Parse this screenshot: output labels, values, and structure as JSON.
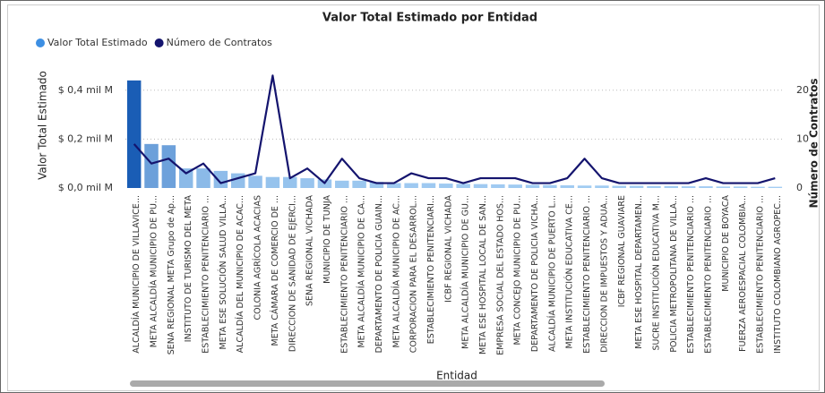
{
  "chart_data": {
    "type": "bar-line",
    "title": "Valor Total Estimado por Entidad",
    "x_label": "Entidad",
    "y_label": "Valor Total Estimado",
    "y2_label": "Número de Contratos",
    "categories": [
      "ALCALDÍA MUNICIPIO DE VILLAVICE...",
      "META ALCALDÍA MUNICIPIO DE PU...",
      "SENA REGIONAL META Grupo de Ap...",
      "INSTITUTO DE TURISMO DEL META",
      "ESTABLECIMIENTO PENITENCIARIO ...",
      "META ESE SOLUCIÓN SALUD VILLA...",
      "ALCALDÍA DEL MUNICIPIO DE ACAC...",
      "COLONIA AGRÍCOLA ACACIAS",
      "META CÁMARA DE COMERCIO DE ...",
      "DIRECCION DE SANIDAD DE EJERCI...",
      "SENA REGIONAL VICHADA",
      "MUNICIPIO DE TUNJA",
      "ESTABLECIMIENTO PENITENCIARIO ...",
      "META ALCALDÍA MUNICIPIO DE CA...",
      "DEPARTAMENTO DE POLICIA GUAIN...",
      "META ALCALDÍA MUNICIPIO DE AC...",
      "CORPORACION PARA EL DESARROL...",
      "ESTABLECIMIENTO PENITENCIARI...",
      "ICBF REGIONAL VICHADA",
      "META ALCALDÍA MUNICIPIO DE GU...",
      "META ESE HOSPITAL LOCAL DE SAN...",
      "EMPRESA SOCIAL DEL ESTADO HOS...",
      "META CONCEJO MUNICIPIO DE PU...",
      "DEPARTAMENTO DE POLICIA VICHA...",
      "ALCALDÍA MUNICIPIO DE PUERTO L...",
      "META INSTITUCIÓN EDUCATIVA CE...",
      "ESTABLECIMIENTO PENITENCIARIO ...",
      "DIRECCION DE IMPUESTOS Y ADUA...",
      "ICBF REGIONAL GUAVIARE",
      "META ESE HOSPITAL DEPARTAMEN...",
      "SUCRE INSTITUCIÓN EDUCATIVA M...",
      "POLICIA METROPOLITANA DE VILLA...",
      "ESTABLECIMIENTO PENITENCIARIO ...",
      "ESTABLECIMIENTO PENITENCIARIO ...",
      "MUNICIPIO DE BOYACA",
      "FUERZA AEROESPACIAL COLOMBIA...",
      "ESTABLECIMIENTO PENITENCIARIO ...",
      "INSTITUTO COLOMBIANO AGROPEC..."
    ],
    "series": [
      {
        "name": "Valor Total Estimado",
        "color": "#3d8fe3",
        "color_scale": [
          "#a3cdf3",
          "#1a5db5"
        ],
        "values": [
          0.44,
          0.18,
          0.175,
          0.08,
          0.08,
          0.07,
          0.06,
          0.05,
          0.045,
          0.045,
          0.04,
          0.035,
          0.03,
          0.03,
          0.025,
          0.02,
          0.02,
          0.02,
          0.018,
          0.017,
          0.016,
          0.015,
          0.014,
          0.013,
          0.012,
          0.011,
          0.01,
          0.01,
          0.009,
          0.009,
          0.008,
          0.008,
          0.007,
          0.007,
          0.006,
          0.006,
          0.005,
          0.005
        ]
      },
      {
        "name": "Número de Contratos",
        "color": "#14146e",
        "axis": "y2",
        "values": [
          9,
          5,
          6,
          3,
          5,
          1,
          2,
          3,
          23,
          2,
          4,
          1,
          6,
          2,
          1,
          1,
          3,
          2,
          2,
          1,
          2,
          2,
          2,
          1,
          1,
          2,
          6,
          2,
          1,
          1,
          1,
          1,
          1,
          2,
          1,
          1,
          1,
          2
        ]
      }
    ],
    "ylim": [
      0,
      0.52
    ],
    "yticks": [
      {
        "value": 0,
        "label": "$ 0,0 mil M"
      },
      {
        "value": 0.2,
        "label": "$ 0,2 mil M"
      },
      {
        "value": 0.4,
        "label": "$ 0,4 mil M"
      }
    ],
    "y2lim": [
      0,
      26
    ],
    "y2ticks": [
      0,
      10,
      20
    ],
    "grid": true,
    "legend": "top-left"
  }
}
